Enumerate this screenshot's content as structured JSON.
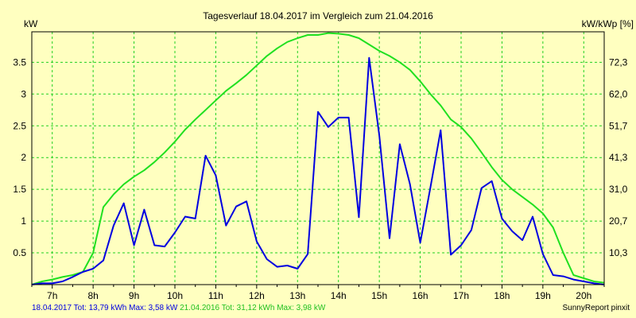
{
  "chart_data": {
    "type": "line",
    "title": "Tagesverlauf 18.04.2017 im Vergleich zum 21.04.2016",
    "ylabel": "kW",
    "y2label": "kW/kWp [%]",
    "xlabel": "",
    "x_ticks": [
      "7h",
      "8h",
      "9h",
      "10h",
      "11h",
      "12h",
      "13h",
      "14h",
      "15h",
      "16h",
      "17h",
      "18h",
      "19h",
      "20h"
    ],
    "y_ticks": [
      "0.5",
      "1",
      "1.5",
      "2",
      "2.5",
      "3",
      "3.5"
    ],
    "y2_ticks": [
      "10,3",
      "20,7",
      "31,0",
      "41,3",
      "51,7",
      "62,0",
      "72,3"
    ],
    "xlim": [
      6.5,
      20.5
    ],
    "ylim": [
      0,
      3.98
    ],
    "grid": true,
    "series": [
      {
        "name": "18.04.2017",
        "color": "#0000e0",
        "x": [
          6.5,
          6.75,
          7.0,
          7.25,
          7.5,
          7.75,
          8.0,
          8.25,
          8.5,
          8.75,
          9.0,
          9.25,
          9.5,
          9.75,
          10.0,
          10.25,
          10.5,
          10.75,
          11.0,
          11.25,
          11.5,
          11.75,
          12.0,
          12.25,
          12.5,
          12.75,
          13.0,
          13.25,
          13.5,
          13.75,
          14.0,
          14.25,
          14.5,
          14.75,
          15.0,
          15.25,
          15.5,
          15.75,
          16.0,
          16.25,
          16.5,
          16.75,
          17.0,
          17.25,
          17.5,
          17.75,
          18.0,
          18.25,
          18.5,
          18.75,
          19.0,
          19.25,
          19.5,
          19.75,
          20.0,
          20.25,
          20.5
        ],
        "values": [
          0,
          0.02,
          0.02,
          0.05,
          0.12,
          0.2,
          0.25,
          0.38,
          0.93,
          1.28,
          0.62,
          1.18,
          0.62,
          0.6,
          0.82,
          1.07,
          1.04,
          2.03,
          1.72,
          0.93,
          1.23,
          1.31,
          0.68,
          0.4,
          0.28,
          0.3,
          0.25,
          0.48,
          2.72,
          2.48,
          2.63,
          2.63,
          1.06,
          3.57,
          2.35,
          0.73,
          2.21,
          1.58,
          0.66,
          1.53,
          2.43,
          0.47,
          0.62,
          0.86,
          1.52,
          1.63,
          1.04,
          0.84,
          0.7,
          1.07,
          0.48,
          0.15,
          0.13,
          0.08,
          0.05,
          0.02,
          0
        ]
      },
      {
        "name": "21.04.2016",
        "color": "#20e020",
        "x": [
          6.5,
          6.75,
          7.0,
          7.25,
          7.5,
          7.75,
          8.0,
          8.25,
          8.5,
          8.75,
          9.0,
          9.25,
          9.5,
          9.75,
          10.0,
          10.25,
          10.5,
          10.75,
          11.0,
          11.25,
          11.5,
          11.75,
          12.0,
          12.25,
          12.5,
          12.75,
          13.0,
          13.25,
          13.5,
          13.75,
          14.0,
          14.25,
          14.5,
          14.75,
          15.0,
          15.25,
          15.5,
          15.75,
          16.0,
          16.25,
          16.5,
          16.75,
          17.0,
          17.25,
          17.5,
          17.75,
          18.0,
          18.25,
          18.5,
          18.75,
          19.0,
          19.25,
          19.5,
          19.75,
          20.0,
          20.25,
          20.5
        ],
        "values": [
          0,
          0.05,
          0.08,
          0.12,
          0.15,
          0.2,
          0.5,
          1.22,
          1.42,
          1.58,
          1.7,
          1.8,
          1.93,
          2.08,
          2.25,
          2.44,
          2.6,
          2.75,
          2.9,
          3.05,
          3.17,
          3.3,
          3.45,
          3.6,
          3.72,
          3.82,
          3.88,
          3.93,
          3.93,
          3.96,
          3.95,
          3.93,
          3.88,
          3.78,
          3.68,
          3.6,
          3.5,
          3.38,
          3.2,
          3.0,
          2.82,
          2.6,
          2.48,
          2.3,
          2.08,
          1.85,
          1.65,
          1.5,
          1.38,
          1.26,
          1.12,
          0.9,
          0.5,
          0.15,
          0.1,
          0.05,
          0.03
        ]
      }
    ],
    "footer": {
      "series1_label": "18.04.2017",
      "series1_stats": "Tot: 13,79 kWh Max: 3,58 kW",
      "series2_label": "21.04.2016",
      "series2_stats": "Tot: 31,12 kWh Max: 3,98 kW",
      "credit": "SunnyReport pinxit"
    }
  }
}
